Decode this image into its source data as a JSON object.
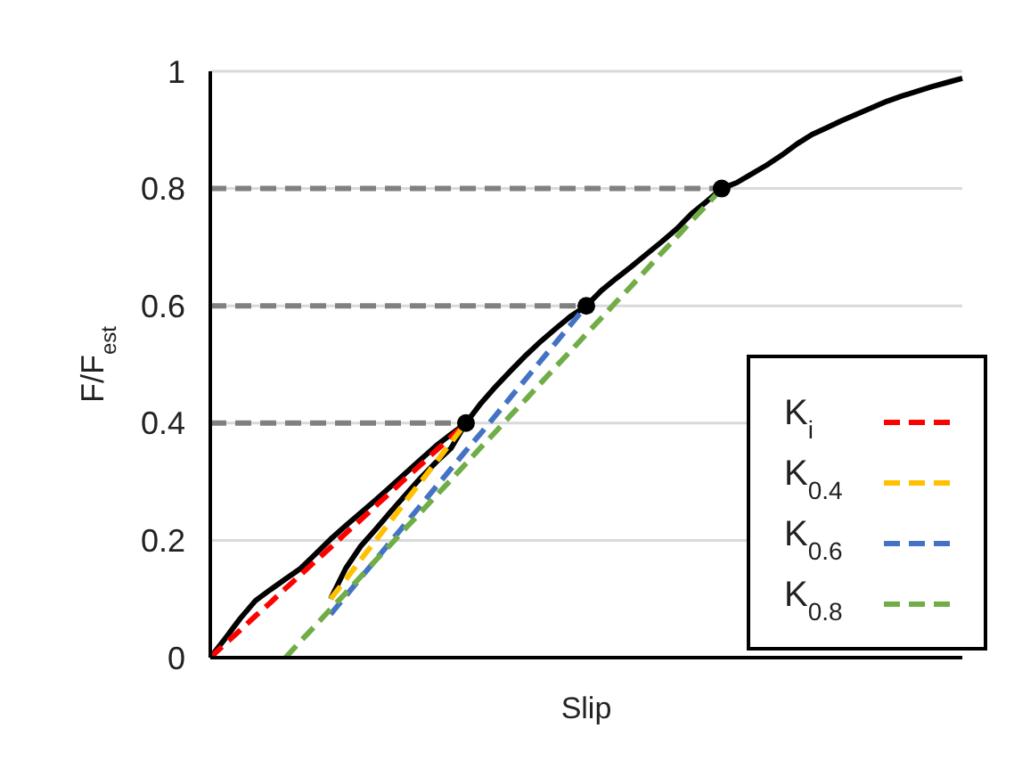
{
  "chart_data": {
    "type": "line",
    "xlabel": "Slip",
    "ylabel": "F/F$_{est}$",
    "ylim": [
      0,
      1
    ],
    "yticks": [
      0,
      0.2,
      0.4,
      0.6,
      0.8,
      1
    ],
    "tick_labels": "y",
    "grid": "y",
    "legend": "bottom right",
    "marker": "none",
    "categories": [
      null,
      null,
      null,
      null,
      null,
      null,
      null,
      null,
      null,
      null,
      null,
      null,
      null,
      null,
      null,
      null,
      null,
      null,
      null,
      null,
      null,
      null,
      null,
      null,
      null,
      null,
      null,
      null,
      null,
      null,
      null,
      null,
      null,
      null,
      null,
      null,
      null,
      null,
      null,
      null,
      null,
      null,
      null,
      null,
      null,
      null,
      null,
      null,
      null,
      null,
      null
    ],
    "series": [
      {
        "color": "#000000",
        "line_style": "solid",
        "values": [
          0,
          0.033,
          0.067,
          0.097,
          0.116,
          0.134,
          0.152,
          0.177,
          0.202,
          0.225,
          0.247,
          0.269,
          0.292,
          0.315,
          0.338,
          0.361,
          0.381,
          0.4,
          0.434,
          0.463,
          0.49,
          0.516,
          0.54,
          0.562,
          0.583,
          0.6,
          0.626,
          0.647,
          0.667,
          0.688,
          0.709,
          0.731,
          0.757,
          0.778,
          0.8,
          0.81,
          0.825,
          0.84,
          0.857,
          0.876,
          0.892,
          0.904,
          0.916,
          0.927,
          0.938,
          0.949,
          0.958,
          0.966,
          0.974,
          0.981,
          0.988
        ]
      },
      {
        "color": "#000000",
        "line_style": "solid",
        "values": [
          null,
          null,
          null,
          null,
          null,
          null,
          null,
          null,
          0.1,
          0.152,
          0.19,
          0.219,
          0.249,
          0.278,
          0.307,
          0.333,
          0.357,
          0.4,
          null,
          null,
          null,
          null,
          null,
          null,
          null,
          null,
          null,
          null,
          null,
          null,
          null,
          null,
          null,
          null,
          null,
          null,
          null,
          null,
          null,
          null,
          null,
          null,
          null,
          null,
          null,
          null,
          null,
          null,
          null,
          null,
          null
        ]
      },
      {
        "color": "#808080",
        "line_style": "dashed",
        "values": [
          0.4,
          0.4,
          0.4,
          0.4,
          0.4,
          0.4,
          0.4,
          0.4,
          0.4,
          0.4,
          0.4,
          0.4,
          0.4,
          0.4,
          0.4,
          0.4,
          0.4,
          0.4,
          null,
          null,
          null,
          null,
          null,
          null,
          null,
          null,
          null,
          null,
          null,
          null,
          null,
          null,
          null,
          null,
          null,
          null,
          null,
          null,
          null,
          null,
          null,
          null,
          null,
          null,
          null,
          null,
          null,
          null,
          null,
          null,
          null
        ]
      },
      {
        "color": "#808080",
        "line_style": "dashed",
        "values": [
          0.6,
          0.6,
          0.6,
          0.6,
          0.6,
          0.6,
          0.6,
          0.6,
          0.6,
          0.6,
          0.6,
          0.6,
          0.6,
          0.6,
          0.6,
          0.6,
          0.6,
          0.6,
          0.6,
          0.6,
          0.6,
          0.6,
          0.6,
          0.6,
          0.6,
          0.6,
          null,
          null,
          null,
          null,
          null,
          null,
          null,
          null,
          null,
          null,
          null,
          null,
          null,
          null,
          null,
          null,
          null,
          null,
          null,
          null,
          null,
          null,
          null,
          null,
          null
        ]
      },
      {
        "color": "#808080",
        "line_style": "dashed",
        "values": [
          0.8,
          0.8,
          0.8,
          0.8,
          0.8,
          0.8,
          0.8,
          0.8,
          0.8,
          0.8,
          0.8,
          0.8,
          0.8,
          0.8,
          0.8,
          0.8,
          0.8,
          0.8,
          0.8,
          0.8,
          0.8,
          0.8,
          0.8,
          0.8,
          0.8,
          0.8,
          0.8,
          0.8,
          0.8,
          0.8,
          0.8,
          0.8,
          0.8,
          0.8,
          0.8,
          null,
          null,
          null,
          null,
          null,
          null,
          null,
          null,
          null,
          null,
          null,
          null,
          null,
          null,
          null,
          null
        ]
      },
      {
        "name": "K$_{i}$",
        "color": "#ff0000",
        "line_style": "dashed",
        "values": [
          0,
          0.024,
          0.047,
          0.071,
          0.094,
          0.118,
          0.141,
          0.165,
          0.188,
          0.212,
          0.235,
          0.259,
          0.282,
          0.306,
          0.329,
          0.353,
          0.376,
          0.4,
          null,
          null,
          null,
          null,
          null,
          null,
          null,
          null,
          null,
          null,
          null,
          null,
          null,
          null,
          null,
          null,
          null,
          null,
          null,
          null,
          null,
          null,
          null,
          null,
          null,
          null,
          null,
          null,
          null,
          null,
          null,
          null,
          null
        ]
      },
      {
        "name": "K$_{0.4}$",
        "color": "#ffc000",
        "line_style": "dashed",
        "values": [
          null,
          null,
          null,
          null,
          null,
          null,
          null,
          null,
          0.1,
          0.133,
          0.167,
          0.2,
          0.233,
          0.267,
          0.3,
          0.333,
          0.367,
          0.4,
          null,
          null,
          null,
          null,
          null,
          null,
          null,
          null,
          null,
          null,
          null,
          null,
          null,
          null,
          null,
          null,
          null,
          null,
          null,
          null,
          null,
          null,
          null,
          null,
          null,
          null,
          null,
          null,
          null,
          null,
          null,
          null,
          null
        ]
      },
      {
        "name": "K$_{0.6}$",
        "color": "#4472c4",
        "line_style": "dashed",
        "values": [
          null,
          null,
          null,
          null,
          null,
          null,
          null,
          null,
          0.074,
          0.105,
          0.136,
          0.167,
          0.198,
          0.229,
          0.26,
          0.291,
          0.322,
          0.353,
          0.383,
          0.414,
          0.445,
          0.476,
          0.507,
          0.538,
          0.569,
          0.6,
          null,
          null,
          null,
          null,
          null,
          null,
          null,
          null,
          null,
          null,
          null,
          null,
          null,
          null,
          null,
          null,
          null,
          null,
          null,
          null,
          null,
          null,
          null,
          null,
          null
        ]
      },
      {
        "name": "K$_{0.8}$",
        "color": "#70ad47",
        "line_style": "dashed",
        "values": [
          null,
          null,
          null,
          null,
          null,
          0,
          0.028,
          0.055,
          0.083,
          0.11,
          0.138,
          0.166,
          0.193,
          0.221,
          0.248,
          0.276,
          0.303,
          0.331,
          0.359,
          0.386,
          0.414,
          0.441,
          0.469,
          0.497,
          0.524,
          0.552,
          0.579,
          0.607,
          0.634,
          0.662,
          0.69,
          0.717,
          0.745,
          0.772,
          0.8,
          null,
          null,
          null,
          null,
          null,
          null,
          null,
          null,
          null,
          null,
          null,
          null,
          null,
          null,
          null,
          null
        ]
      },
      {
        "type": "scatter",
        "color": "#000000",
        "marker": "circle",
        "values": [
          null,
          null,
          null,
          null,
          null,
          null,
          null,
          null,
          null,
          null,
          null,
          null,
          null,
          null,
          null,
          null,
          null,
          0.4,
          null,
          null,
          null,
          null,
          null,
          null,
          null,
          0.6,
          null,
          null,
          null,
          null,
          null,
          null,
          null,
          null,
          0.8,
          null,
          null,
          null,
          null,
          null,
          null,
          null,
          null,
          null,
          null,
          null,
          null,
          null,
          null,
          null,
          null
        ]
      }
    ]
  }
}
